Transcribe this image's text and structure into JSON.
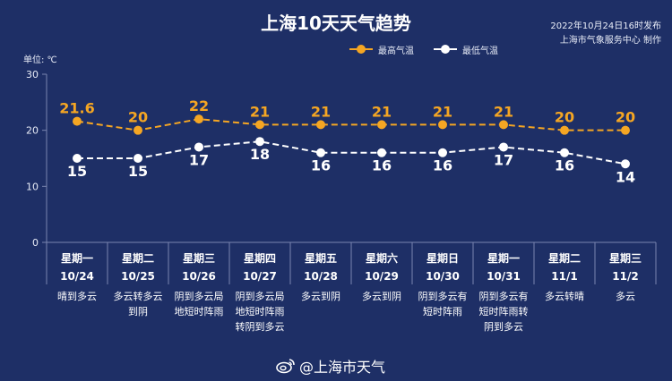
{
  "header": {
    "title": "上海10天天气趋势",
    "publish_time": "2022年10月24日16时发布",
    "producer": "上海市气象服务中心 制作"
  },
  "footer": {
    "icon": "weibo-icon",
    "handle": "@上海市天气"
  },
  "colors": {
    "background": "#1e2f66",
    "high_line": "#f5a623",
    "low_line": "#ffffff",
    "grid": "#7a86b0"
  },
  "chart_data": {
    "type": "line",
    "unit_label": "单位: ℃",
    "ylim": [
      0,
      30
    ],
    "yticks": [
      0,
      10,
      20,
      30
    ],
    "legend": {
      "placement": "top-right"
    },
    "days": [
      {
        "weekday": "星期一",
        "date": "10/24",
        "weather": "晴到多云"
      },
      {
        "weekday": "星期二",
        "date": "10/25",
        "weather": "多云转多云到阴"
      },
      {
        "weekday": "星期三",
        "date": "10/26",
        "weather": "阴到多云局地短时阵雨"
      },
      {
        "weekday": "星期四",
        "date": "10/27",
        "weather": "阴到多云局地短时阵雨转阴到多云"
      },
      {
        "weekday": "星期五",
        "date": "10/28",
        "weather": "多云到阴"
      },
      {
        "weekday": "星期六",
        "date": "10/29",
        "weather": "多云到阴"
      },
      {
        "weekday": "星期日",
        "date": "10/30",
        "weather": "阴到多云有短时阵雨"
      },
      {
        "weekday": "星期一",
        "date": "10/31",
        "weather": "阴到多云有短时阵雨转阴到多云"
      },
      {
        "weekday": "星期二",
        "date": "11/1",
        "weather": "多云转晴"
      },
      {
        "weekday": "星期三",
        "date": "11/2",
        "weather": "多云"
      }
    ],
    "series": [
      {
        "name": "最高气温",
        "color": "#f5a623",
        "values": [
          21.6,
          20,
          22,
          21,
          21,
          21,
          21,
          21,
          20,
          20
        ]
      },
      {
        "name": "最低气温",
        "color": "#ffffff",
        "values": [
          15,
          15,
          17,
          18,
          16,
          16,
          16,
          17,
          16,
          14
        ]
      }
    ]
  }
}
